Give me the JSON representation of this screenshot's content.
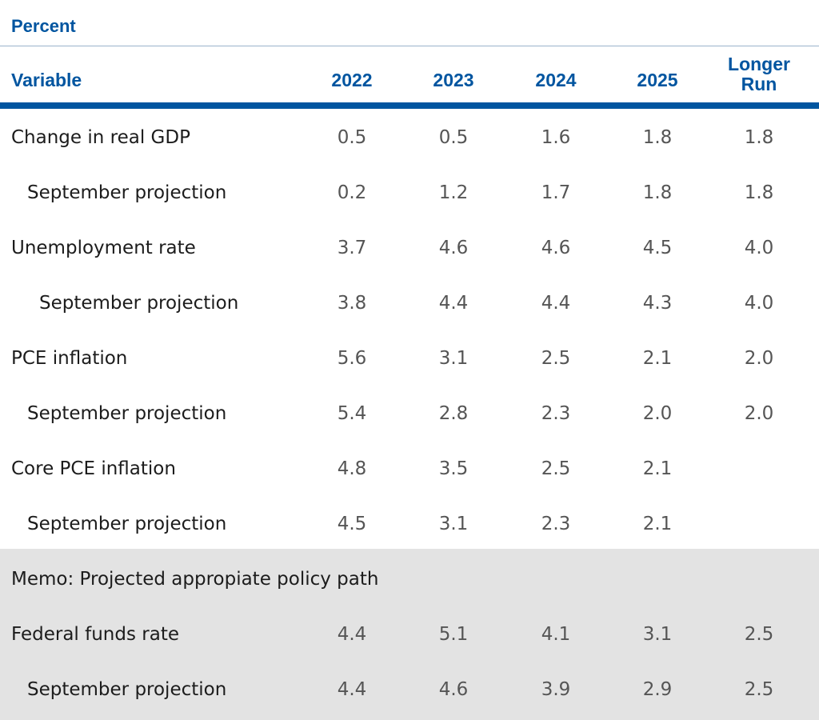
{
  "unit_label": "Percent",
  "header": {
    "variable": "Variable",
    "years": [
      "2022",
      "2023",
      "2024",
      "2025"
    ],
    "longer_run_line1": "Longer",
    "longer_run_line2": "Run"
  },
  "rows": [
    {
      "label": "Change in real GDP",
      "values": [
        "0.5",
        "0.5",
        "1.6",
        "1.8",
        "1.8"
      ]
    },
    {
      "label": "September projection",
      "values": [
        "0.2",
        "1.2",
        "1.7",
        "1.8",
        "1.8"
      ]
    },
    {
      "label": "Unemployment rate",
      "values": [
        "3.7",
        "4.6",
        "4.6",
        "4.5",
        "4.0"
      ]
    },
    {
      "label": "September projection",
      "values": [
        "3.8",
        "4.4",
        "4.4",
        "4.3",
        "4.0"
      ]
    },
    {
      "label": "PCE inflation",
      "values": [
        "5.6",
        "3.1",
        "2.5",
        "2.1",
        "2.0"
      ]
    },
    {
      "label": "September projection",
      "values": [
        "5.4",
        "2.8",
        "2.3",
        "2.0",
        "2.0"
      ]
    },
    {
      "label": "Core PCE inflation",
      "values": [
        "4.8",
        "3.5",
        "2.5",
        "2.1",
        ""
      ]
    },
    {
      "label": "September projection",
      "values": [
        "4.5",
        "3.1",
        "2.3",
        "2.1",
        ""
      ]
    }
  ],
  "memo": {
    "title": "Memo: Projected appropiate policy path",
    "rows": [
      {
        "label": "Federal funds rate",
        "values": [
          "4.4",
          "5.1",
          "4.1",
          "3.1",
          "2.5"
        ]
      },
      {
        "label": "September projection",
        "values": [
          "4.4",
          "4.6",
          "3.9",
          "2.9",
          "2.5"
        ]
      }
    ]
  },
  "colors": {
    "header_blue": "#0055a0",
    "value_gray": "#555555",
    "label_black": "#1c1c1c",
    "memo_background": "#e3e3e3"
  }
}
